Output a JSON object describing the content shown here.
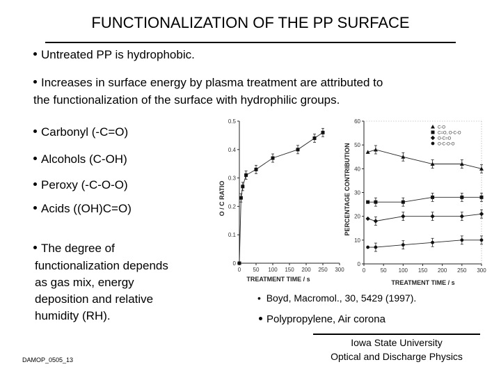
{
  "title": "FUNCTIONALIZATION OF THE PP SURFACE",
  "bullets": {
    "untreated": "Untreated PP is hydrophobic.",
    "increase_1": "Increases in surface energy by plasma treatment are attributed to",
    "increase_2": "the functionalization of the surface with hydrophilic groups.",
    "carbonyl": "Carbonyl (-C=O)",
    "alcohols": "Alcohols (C-OH)",
    "peroxy": "Peroxy (-C-O-O)",
    "acids": "Acids ((OH)C=O)",
    "degree_1": "The degree of",
    "degree_2": "functionalization depends",
    "degree_3": "as gas mix, energy",
    "degree_4": "deposition and relative",
    "degree_5": "humidity (RH)."
  },
  "references": {
    "boyd_bullet": "•",
    "boyd": "Boyd,  Macromol., 30, 5429 (1997).",
    "pp": "Polypropylene,  Air corona"
  },
  "footer": {
    "university": "Iowa State University",
    "department": "Optical and Discharge Physics",
    "slide_id": "DAMOP_0505_13"
  },
  "chart_data": [
    {
      "type": "line",
      "title": "",
      "xlabel": "TREATMENT TIME / s",
      "ylabel": "O / C RATIO",
      "xlim": [
        0,
        300
      ],
      "ylim": [
        0,
        0.5
      ],
      "xticks": [
        "0",
        "50",
        "100",
        "150",
        "200",
        "250",
        "300"
      ],
      "yticks": [
        "0",
        "0.1",
        "0.2",
        "0.3",
        "0.4",
        "0.5"
      ],
      "series": [
        {
          "name": "O/C",
          "x": [
            0,
            5,
            10,
            20,
            50,
            100,
            175,
            225,
            250
          ],
          "y": [
            0.0,
            0.23,
            0.27,
            0.31,
            0.33,
            0.37,
            0.4,
            0.44,
            0.46
          ]
        }
      ]
    },
    {
      "type": "line",
      "title": "",
      "xlabel": "TREATMENT TIME / s",
      "ylabel": "PERCENTAGE CONTRIBUTION",
      "xlim": [
        0,
        300
      ],
      "ylim": [
        0,
        60
      ],
      "xticks": [
        "0",
        "50",
        "100",
        "150",
        "200",
        "250",
        "300"
      ],
      "yticks": [
        "0",
        "10",
        "20",
        "30",
        "40",
        "50",
        "60"
      ],
      "legend": "top-right",
      "series": [
        {
          "name": "C-O",
          "x": [
            10,
            30,
            100,
            175,
            250,
            300
          ],
          "y": [
            47,
            48,
            45,
            42,
            42,
            40
          ]
        },
        {
          "name": "C=O, O-C-O",
          "x": [
            10,
            30,
            100,
            175,
            250,
            300
          ],
          "y": [
            26,
            26,
            26,
            28,
            28,
            28
          ]
        },
        {
          "name": "O-C=O",
          "x": [
            10,
            30,
            100,
            175,
            250,
            300
          ],
          "y": [
            19,
            18,
            20,
            20,
            20,
            21
          ]
        },
        {
          "name": "O-C-O-O",
          "x": [
            10,
            30,
            100,
            175,
            250,
            300
          ],
          "y": [
            7,
            7,
            8,
            9,
            10,
            10
          ]
        }
      ]
    }
  ]
}
